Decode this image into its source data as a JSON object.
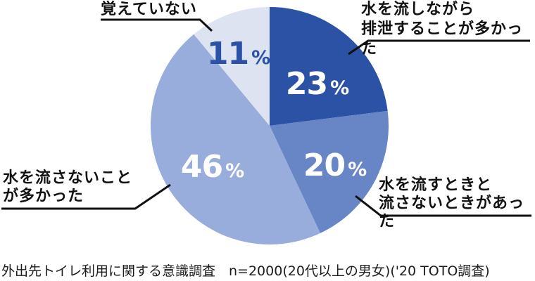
{
  "chart_data": {
    "type": "pie",
    "title": "",
    "unit": "%",
    "start_angle_deg": 0,
    "direction": "clockwise",
    "legend": "none",
    "slices": [
      {
        "label": "水を流しながら排泄することが多かった",
        "value": 23,
        "color": "#2B52A5",
        "value_color": "#FFFFFF"
      },
      {
        "label": "水を流すときと流さないときがあった",
        "value": 20,
        "color": "#6885C6",
        "value_color": "#FFFFFF"
      },
      {
        "label": "水を流さないことが多かった",
        "value": 46,
        "color": "#98ADDC",
        "value_color": "#FFFFFF"
      },
      {
        "label": "覚えていない",
        "value": 11,
        "color": "#DEE3F2",
        "value_color": "#2B52A5"
      }
    ],
    "source_note": "外出先トイレ利用に関する意識調査　n=2000(20代以上の男女)('20 TOTO調査)"
  },
  "callouts": {
    "flush_while": "水を流しながら\n排泄することが多かった",
    "sometimes": "水を流すときと\n流さないときがあった",
    "no_flush": "水を流さないこと\nが多かった",
    "dont_remember": "覚えていない"
  }
}
